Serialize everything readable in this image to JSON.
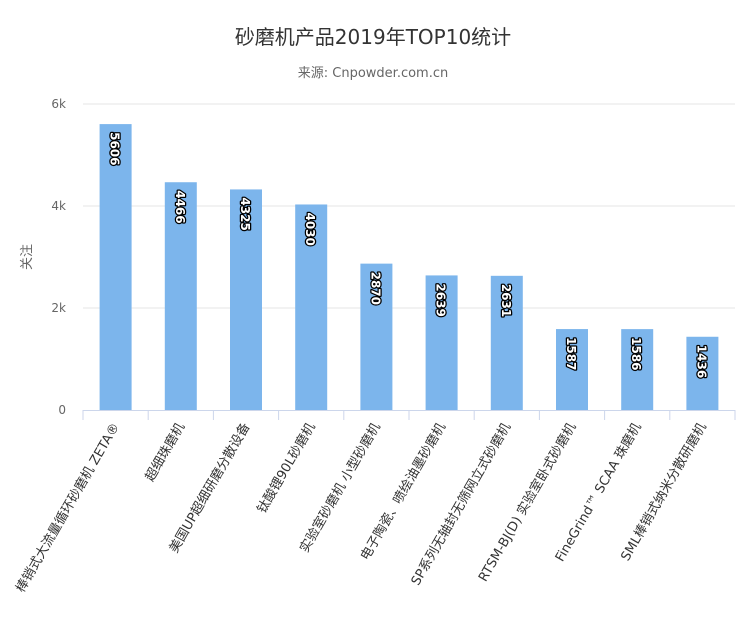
{
  "chart_data": {
    "type": "bar",
    "title": "砂磨机产品2019年TOP10统计",
    "subtitle": "来源: Cnpowder.com.cn",
    "xlabel": "",
    "ylabel": "关注",
    "ylim": [
      0,
      6000
    ],
    "yticks": [
      0,
      2000,
      4000,
      6000
    ],
    "ytick_labels": [
      "0",
      "2k",
      "4k",
      "6k"
    ],
    "grid": true,
    "legend": "none",
    "color": "#7cb5ec",
    "categories": [
      "棒销式大流量循环砂磨机 ZETA®",
      "超细珠磨机",
      "美国UP超细研磨分散设备",
      "钛酸锂90L砂磨机",
      "实验室砂磨机 小型砂磨机",
      "电子陶瓷、喷绘油墨砂磨机",
      "SP系列无轴封无筛网立式砂磨机",
      "RTSM-BJ(D) 实验室卧式砂磨机",
      "FineGrind™ SCAA 珠磨机",
      "SML棒销式纳米分散研磨机"
    ],
    "values": [
      5606,
      4466,
      4325,
      4030,
      2870,
      2639,
      2631,
      1587,
      1586,
      1436
    ]
  }
}
